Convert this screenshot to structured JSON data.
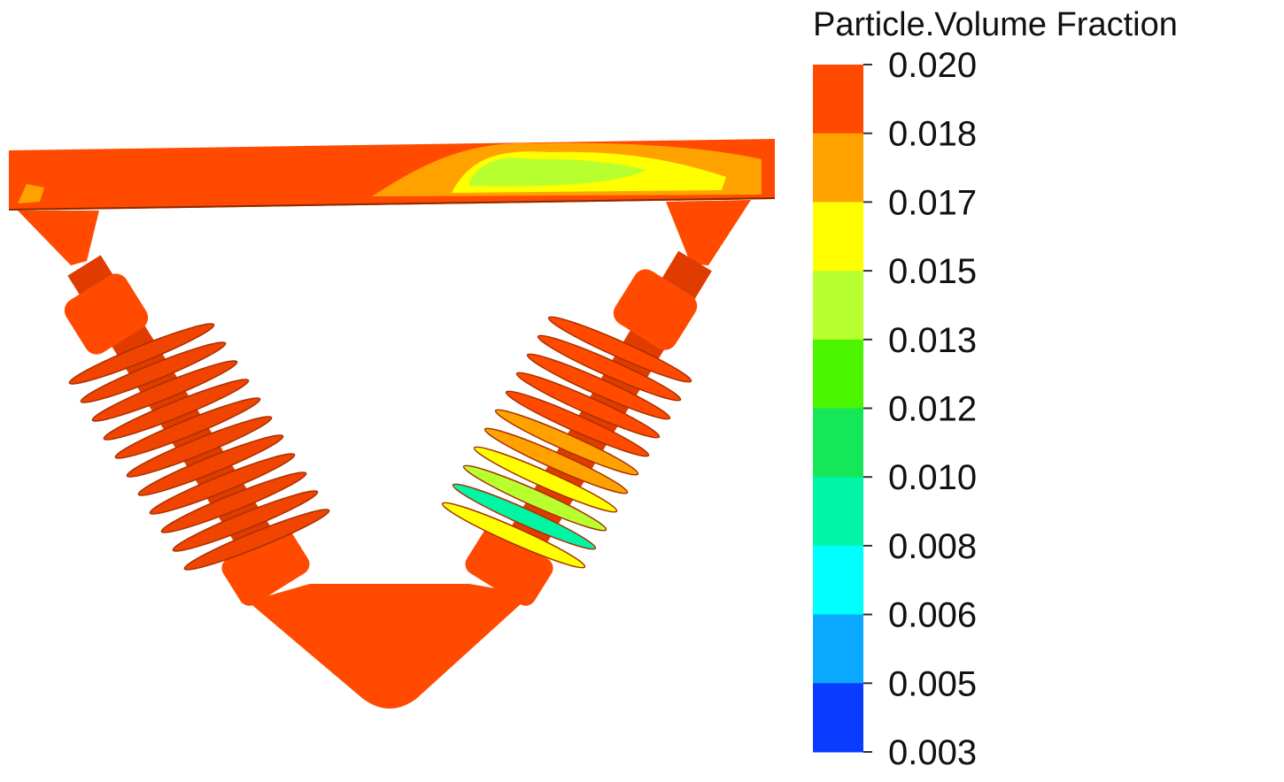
{
  "legend": {
    "title": "Particle.Volume Fraction",
    "ticks": [
      "0.020",
      "0.018",
      "0.017",
      "0.015",
      "0.013",
      "0.012",
      "0.010",
      "0.008",
      "0.006",
      "0.005",
      "0.003"
    ],
    "colors": [
      "#ff4a00",
      "#ffa200",
      "#ffff00",
      "#b8ff30",
      "#4cf500",
      "#14e858",
      "#00f5a5",
      "#00ffff",
      "#0aa8ff",
      "#0a3cff"
    ]
  }
}
